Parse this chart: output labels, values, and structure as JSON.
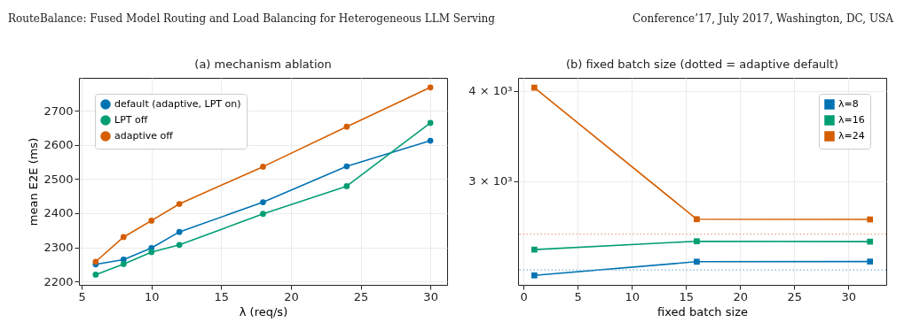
{
  "chart_data": [
    {
      "type": "line",
      "title": "(a) mechanism ablation",
      "xlabel": "λ (req/s)",
      "ylabel": "mean E2E (ms)",
      "annotations": [
        "RouteBalance: Fused Model Routing and Load Balancing for Heterogeneous LLM Serving",
        "Conference’17, July 2017, Washington, DC, USA"
      ],
      "x": [
        6,
        8,
        10,
        12,
        18,
        24,
        30
      ],
      "series": [
        {
          "name": "default (adaptive, LPT on)",
          "color": "#0173b2",
          "values": [
            2250,
            2264,
            2298,
            2345,
            2432,
            2537,
            2612
          ]
        },
        {
          "name": "LPT off",
          "color": "#029e73",
          "values": [
            2220,
            2251,
            2286,
            2307,
            2398,
            2479,
            2664
          ]
        },
        {
          "name": "adaptive off",
          "color": "#d55e00",
          "values": [
            2258,
            2330,
            2378,
            2427,
            2536,
            2653,
            2768
          ]
        }
      ],
      "xlim": [
        4.8,
        31.2
      ],
      "xticks": [
        5,
        10,
        15,
        20,
        25,
        30
      ],
      "ylim": [
        2190,
        2796
      ],
      "yticks": [
        2200,
        2300,
        2400,
        2500,
        2600,
        2700
      ],
      "grid": true,
      "legend": "top left",
      "marker": "circle",
      "line_style": "solid"
    },
    {
      "type": "line",
      "title": "(b) fixed batch size (dotted = adaptive default)",
      "xlabel": "fixed batch size",
      "x": [
        1,
        16,
        32
      ],
      "series": [
        {
          "name": "λ=8",
          "color": "#0173b2",
          "values": [
            2225,
            2324,
            2325
          ]
        },
        {
          "name": "λ=16",
          "color": "#029e73",
          "values": [
            2415,
            2480,
            2477
          ]
        },
        {
          "name": "λ=24",
          "color": "#d55e00",
          "values": [
            4040,
            2660,
            2658
          ]
        }
      ],
      "ref_lines": [
        {
          "axis": "y",
          "value": 2264,
          "color": "#7fb3d8",
          "line_style": "dotted"
        },
        {
          "axis": "y",
          "value": 2537,
          "color": "#eaa57f",
          "line_style": "dotted"
        }
      ],
      "xlim": [
        -0.5,
        33.5
      ],
      "xticks": [
        0,
        5,
        10,
        15,
        20,
        25,
        30
      ],
      "ylim": [
        2159,
        4168
      ],
      "yticks": [
        {
          "value": 3000,
          "label": "3 × 10³"
        },
        {
          "value": 4000,
          "label": "4 × 10³"
        }
      ],
      "log": "y",
      "grid": true,
      "legend": "top right",
      "marker": "square",
      "line_style": "solid"
    }
  ]
}
